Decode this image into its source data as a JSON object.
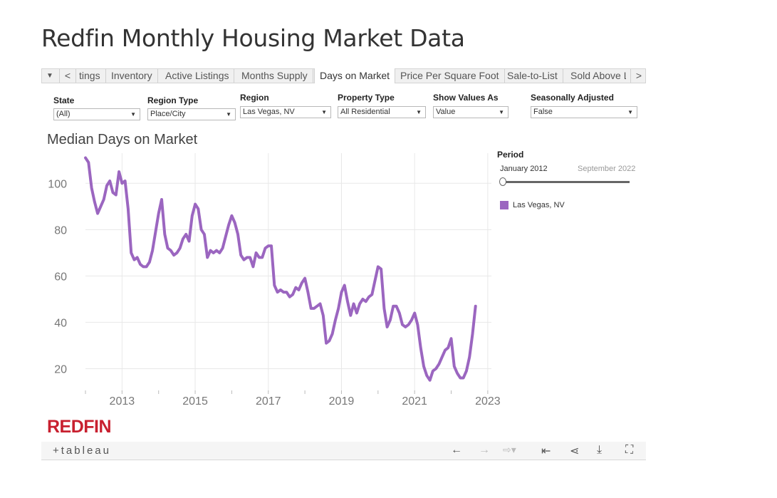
{
  "page_title": "Redfin Monthly Housing Market Data",
  "tabs": {
    "prev": "<",
    "next": ">",
    "menu": "▼",
    "items": [
      "tings",
      "Inventory",
      "Active Listings",
      "Months Supply",
      "Days on Market",
      "Price Per Square Foot",
      "Sale-to-List",
      "Sold Above Li"
    ],
    "active_index": 4
  },
  "filters": [
    {
      "label": "State",
      "value": "(All)"
    },
    {
      "label": "Region Type",
      "value": "Place/City"
    },
    {
      "label": "Region",
      "value": "Las Vegas, NV"
    },
    {
      "label": "Property Type",
      "value": "All Residential"
    },
    {
      "label": "Show Values As",
      "value": "Value"
    },
    {
      "label": "Seasonally Adjusted",
      "value": "False"
    }
  ],
  "legend": {
    "period_label": "Period",
    "period_start": "January 2012",
    "period_end": "September 2022",
    "series_label": "Las Vegas, NV"
  },
  "colors": {
    "series": "#9b66c0",
    "grid": "#e8e8e8",
    "axis_text": "#777777"
  },
  "logo": "REDFIN",
  "toolbar": {
    "brand": "+tableau"
  },
  "chart_data": {
    "type": "line",
    "title": "Median Days on Market",
    "xlabel": "",
    "ylabel": "",
    "x_ticks": [
      2013,
      2015,
      2017,
      2019,
      2021,
      2023
    ],
    "y_ticks": [
      20,
      40,
      60,
      80,
      100
    ],
    "xlim": [
      2012.0,
      2023.1
    ],
    "ylim": [
      10,
      113
    ],
    "series": [
      {
        "name": "Las Vegas, NV",
        "start": [
          2012,
          1
        ],
        "values": [
          111,
          109,
          98,
          92,
          87,
          90,
          93,
          99,
          101,
          96,
          95,
          105,
          100,
          101,
          89,
          70,
          67,
          68,
          65,
          64,
          64,
          66,
          71,
          79,
          87,
          93,
          78,
          72,
          71,
          69,
          70,
          72,
          76,
          78,
          75,
          86,
          91,
          89,
          80,
          78,
          68,
          71,
          70,
          71,
          70,
          72,
          77,
          82,
          86,
          83,
          78,
          69,
          67,
          68,
          68,
          64,
          70,
          68,
          68,
          72,
          73,
          73,
          56,
          53,
          54,
          53,
          53,
          51,
          52,
          55,
          54,
          57,
          59,
          53,
          46,
          46,
          47,
          48,
          43,
          31,
          32,
          35,
          41,
          46,
          53,
          56,
          49,
          43,
          48,
          44,
          48,
          50,
          49,
          51,
          52,
          58,
          64,
          63,
          46,
          38,
          41,
          47,
          47,
          44,
          39,
          38,
          39,
          41,
          44,
          39,
          29,
          21,
          17,
          15,
          19,
          20,
          22,
          25,
          28,
          29,
          33,
          21,
          18,
          16,
          16,
          19,
          25,
          35,
          47
        ]
      }
    ]
  }
}
